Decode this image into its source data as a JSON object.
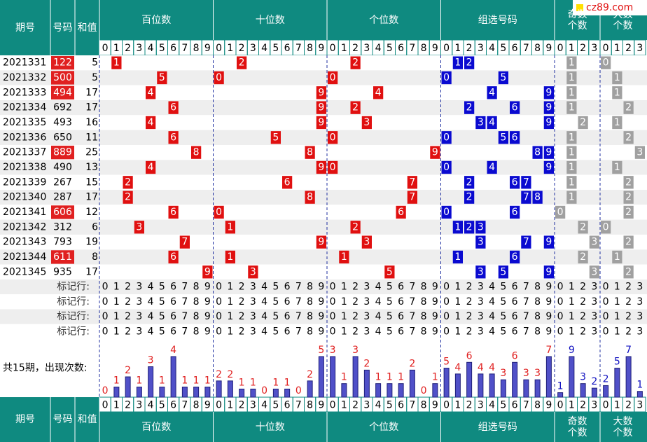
{
  "watermark": "cz89.com",
  "header": {
    "period": "期号",
    "number": "号码",
    "sum": "和值",
    "groups": [
      "百位数",
      "十位数",
      "个位数",
      "组选号码",
      "奇数个数",
      "大数个数"
    ]
  },
  "digit_labels": [
    0,
    1,
    2,
    3,
    4,
    5,
    6,
    7,
    8,
    9
  ],
  "count_labels": [
    0,
    1,
    2,
    3
  ],
  "rows": [
    {
      "period": "2021331",
      "number": "122",
      "sum": 5
    },
    {
      "period": "2021332",
      "number": "500",
      "sum": 5
    },
    {
      "period": "2021333",
      "number": "494",
      "sum": 17
    },
    {
      "period": "2021334",
      "number": "692",
      "sum": 17
    },
    {
      "period": "2021335",
      "number": "493",
      "sum": 16
    },
    {
      "period": "2021336",
      "number": "650",
      "sum": 11
    },
    {
      "period": "2021337",
      "number": "889",
      "sum": 25
    },
    {
      "period": "2021338",
      "number": "490",
      "sum": 13
    },
    {
      "period": "2021339",
      "number": "267",
      "sum": 15
    },
    {
      "period": "2021340",
      "number": "287",
      "sum": 17
    },
    {
      "period": "2021341",
      "number": "606",
      "sum": 12
    },
    {
      "period": "2021342",
      "number": "312",
      "sum": 6
    },
    {
      "period": "2021343",
      "number": "793",
      "sum": 19
    },
    {
      "period": "2021344",
      "number": "611",
      "sum": 8
    },
    {
      "period": "2021345",
      "number": "935",
      "sum": 17
    }
  ],
  "marker_rows": [
    "标记行:",
    "标记行:",
    "标记行:",
    "标记行:"
  ],
  "count_title": "共15期，出现次数:",
  "counts": [
    [
      0,
      1,
      2,
      1,
      3,
      1,
      4,
      1,
      1,
      1
    ],
    [
      2,
      2,
      1,
      1,
      0,
      1,
      1,
      0,
      2,
      5
    ],
    [
      3,
      1,
      3,
      2,
      1,
      1,
      1,
      2,
      0,
      1
    ],
    [
      5,
      4,
      6,
      4,
      4,
      3,
      6,
      3,
      3,
      7
    ],
    [
      1,
      9,
      3,
      2
    ],
    [
      2,
      5,
      7,
      1
    ]
  ]
}
